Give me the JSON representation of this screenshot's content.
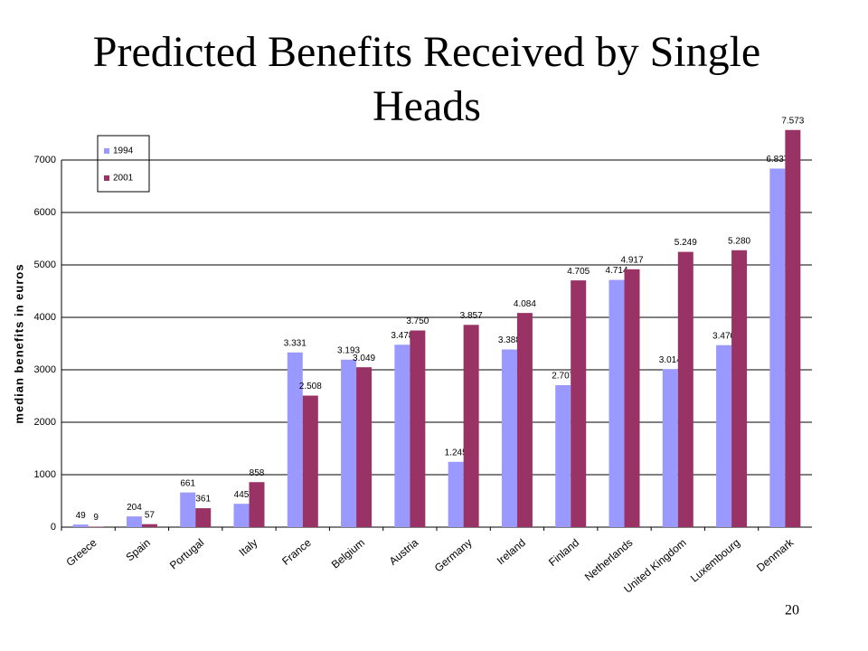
{
  "page_number": "20",
  "chart_data": {
    "type": "bar",
    "title": "Predicted Benefits Received by Single Heads",
    "y_label": "median benefits in euros",
    "categories": [
      "Greece",
      "Spain",
      "Portugal",
      "Italy",
      "France",
      "Belgium",
      "Austria",
      "Germany",
      "Ireland",
      "Finland",
      "Netherlands",
      "United Kingdom",
      "Luxembourg",
      "Denmark"
    ],
    "series": [
      {
        "name": "1994",
        "color": "#9999ff",
        "values": [
          49,
          204,
          661,
          445,
          3331,
          3193,
          3478,
          1245,
          3388,
          2707,
          4714,
          3014,
          3470,
          6837
        ],
        "value_labels": [
          "49",
          "204",
          "661",
          "445",
          "3.331",
          "3.193",
          "3.478",
          "1.245",
          "3.388",
          "2.707",
          "4.714",
          "3.014",
          "3.470",
          "6.837"
        ]
      },
      {
        "name": "2001",
        "color": "#993366",
        "values": [
          9,
          57,
          361,
          858,
          2508,
          3049,
          3750,
          3857,
          4084,
          4705,
          4917,
          5249,
          5280,
          7573
        ],
        "value_labels": [
          "9",
          "57",
          "361",
          "858",
          "2.508",
          "3.049",
          "3.750",
          "3.857",
          "4.084",
          "4.705",
          "4.917",
          "5.249",
          "5.280",
          "7.573"
        ]
      }
    ],
    "ylim": [
      0,
      7000
    ],
    "yticks": [
      0,
      1000,
      2000,
      3000,
      4000,
      5000,
      6000,
      7000
    ],
    "grid": true,
    "legend": "top-left"
  }
}
